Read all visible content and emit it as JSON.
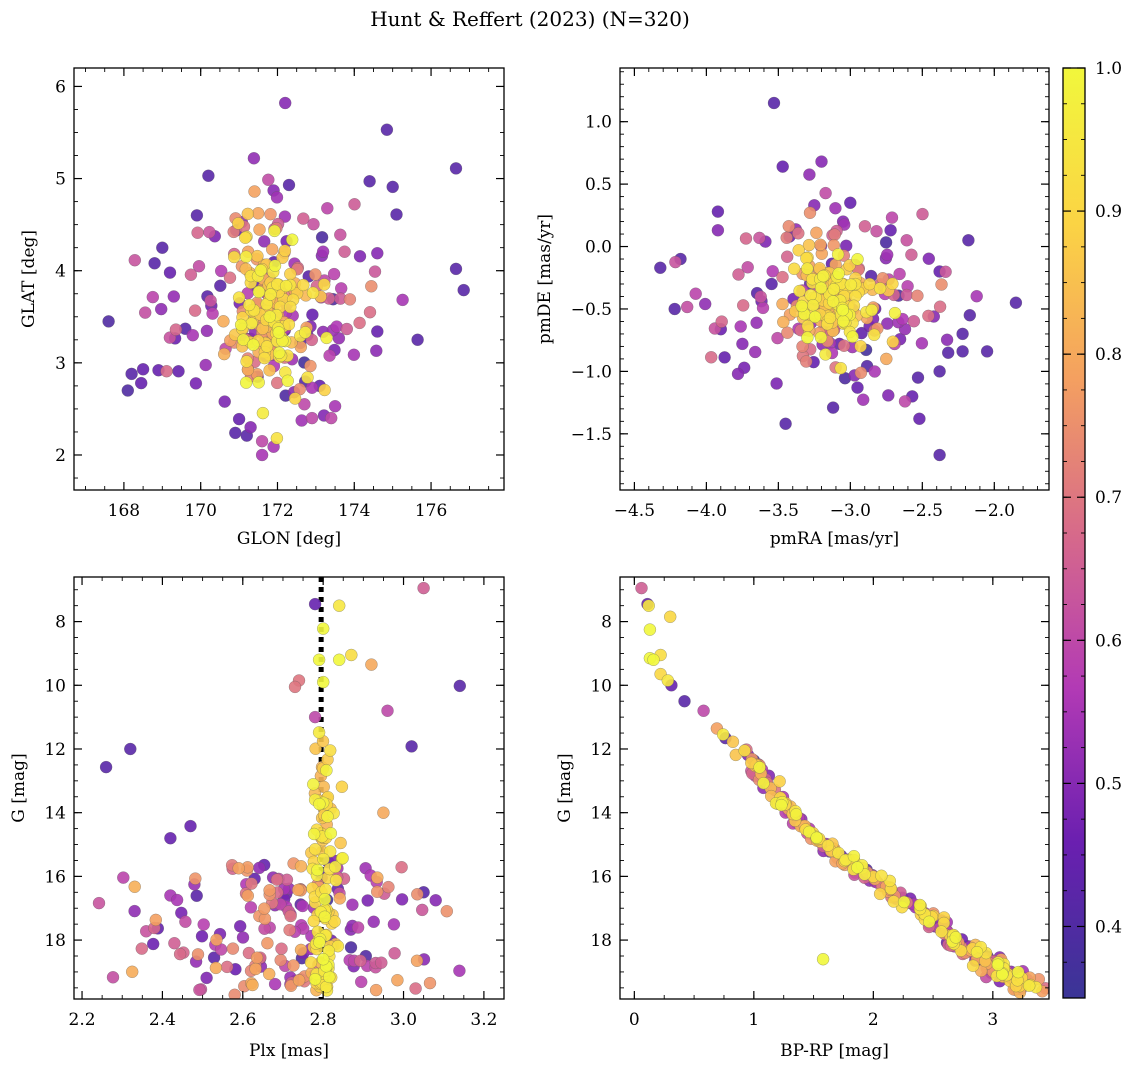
{
  "figure": {
    "title": "Hunt & Reffert (2023) (N=320)"
  },
  "chart_data": [
    {
      "type": "scatter",
      "id": "sky",
      "xlabel": "GLON [deg]",
      "ylabel": "GLAT [deg]",
      "xlim": [
        166.7,
        177.9
      ],
      "ylim": [
        1.62,
        6.2
      ],
      "xticks": [
        168,
        170,
        172,
        174,
        176
      ],
      "xminor": 0.5,
      "yticks": [
        2,
        3,
        4,
        5,
        6
      ],
      "yminor": 0.25,
      "x_tick_labels": [
        "168",
        "170",
        "172",
        "174",
        "176"
      ],
      "y_tick_labels": [
        "2",
        "3",
        "4",
        "5",
        "6"
      ],
      "cluster": {
        "cx": 171.8,
        "cy": 3.6,
        "sx": 0.55,
        "sy": 0.42
      },
      "field": {
        "cx": 172.0,
        "cy": 3.6,
        "sx": 1.4,
        "sy": 0.6
      },
      "fixed_points": [
        {
          "x": 167.6,
          "y": 3.45,
          "c": 0.4
        },
        {
          "x": 168.1,
          "y": 2.7,
          "c": 0.4
        },
        {
          "x": 168.2,
          "y": 2.88,
          "c": 0.42
        },
        {
          "x": 168.45,
          "y": 2.78,
          "c": 0.45
        },
        {
          "x": 168.5,
          "y": 2.93,
          "c": 0.45
        },
        {
          "x": 168.8,
          "y": 4.08,
          "c": 0.42
        },
        {
          "x": 168.9,
          "y": 2.92,
          "c": 0.45
        },
        {
          "x": 169.0,
          "y": 4.25,
          "c": 0.42
        },
        {
          "x": 169.2,
          "y": 3.98,
          "c": 0.45
        },
        {
          "x": 169.3,
          "y": 3.72,
          "c": 0.52
        },
        {
          "x": 169.6,
          "y": 3.37,
          "c": 0.42
        },
        {
          "x": 170.2,
          "y": 5.03,
          "c": 0.42
        },
        {
          "x": 169.9,
          "y": 4.6,
          "c": 0.42
        },
        {
          "x": 172.2,
          "y": 5.82,
          "c": 0.5
        },
        {
          "x": 174.85,
          "y": 5.53,
          "c": 0.42
        },
        {
          "x": 176.65,
          "y": 5.11,
          "c": 0.42
        },
        {
          "x": 174.4,
          "y": 4.97,
          "c": 0.42
        },
        {
          "x": 175.0,
          "y": 4.91,
          "c": 0.42
        },
        {
          "x": 172.3,
          "y": 4.93,
          "c": 0.42
        },
        {
          "x": 171.9,
          "y": 4.87,
          "c": 0.5
        },
        {
          "x": 175.1,
          "y": 4.61,
          "c": 0.42
        },
        {
          "x": 176.65,
          "y": 4.02,
          "c": 0.42
        },
        {
          "x": 176.85,
          "y": 3.79,
          "c": 0.42
        },
        {
          "x": 175.65,
          "y": 3.25,
          "c": 0.42
        },
        {
          "x": 174.6,
          "y": 3.34,
          "c": 0.45
        },
        {
          "x": 174.6,
          "y": 4.19,
          "c": 0.5
        },
        {
          "x": 170.9,
          "y": 2.24,
          "c": 0.42
        },
        {
          "x": 171.0,
          "y": 2.39,
          "c": 0.45
        },
        {
          "x": 171.2,
          "y": 2.21,
          "c": 0.42
        },
        {
          "x": 171.3,
          "y": 2.3,
          "c": 0.5
        },
        {
          "x": 171.6,
          "y": 2.0,
          "c": 0.55
        },
        {
          "x": 171.6,
          "y": 2.15,
          "c": 0.6
        },
        {
          "x": 171.9,
          "y": 2.09,
          "c": 0.55
        },
        {
          "x": 172.7,
          "y": 2.55,
          "c": 0.6
        },
        {
          "x": 172.9,
          "y": 2.4,
          "c": 0.6
        },
        {
          "x": 173.1,
          "y": 2.75,
          "c": 0.45
        },
        {
          "x": 173.5,
          "y": 2.53,
          "c": 0.55
        },
        {
          "x": 173.4,
          "y": 2.4,
          "c": 0.6
        }
      ]
    },
    {
      "type": "scatter",
      "id": "pm",
      "xlabel": "pmRA [mas/yr]",
      "ylabel": "pmDE [mas/yr]",
      "xlim": [
        -4.6,
        -1.62
      ],
      "ylim": [
        -1.95,
        1.43
      ],
      "xticks": [
        -4.5,
        -4.0,
        -3.5,
        -3.0,
        -2.5,
        -2.0
      ],
      "xminor": 0.1,
      "yticks": [
        -1.5,
        -1.0,
        -0.5,
        0.0,
        0.5,
        1.0
      ],
      "yminor": 0.1,
      "x_tick_labels": [
        "−4.5",
        "−4.0",
        "−3.5",
        "−3.0",
        "−2.5",
        "−2.0"
      ],
      "y_tick_labels": [
        "−1.5",
        "−1.0",
        "−0.5",
        "0.0",
        "0.5",
        "1.0"
      ],
      "cluster": {
        "cx": -3.12,
        "cy": -0.4,
        "sx": 0.16,
        "sy": 0.17
      },
      "field": {
        "cx": -3.1,
        "cy": -0.45,
        "sx": 0.42,
        "sy": 0.38
      },
      "fixed_points": [
        {
          "x": -3.53,
          "y": 1.15,
          "c": 0.42
        },
        {
          "x": -3.47,
          "y": 0.64,
          "c": 0.45
        },
        {
          "x": -3.2,
          "y": 0.68,
          "c": 0.5
        },
        {
          "x": -4.32,
          "y": -0.17,
          "c": 0.42
        },
        {
          "x": -4.22,
          "y": -0.5,
          "c": 0.42
        },
        {
          "x": -4.18,
          "y": -0.1,
          "c": 0.42
        },
        {
          "x": -3.92,
          "y": 0.28,
          "c": 0.45
        },
        {
          "x": -3.92,
          "y": 0.13,
          "c": 0.5
        },
        {
          "x": -1.85,
          "y": -0.45,
          "c": 0.42
        },
        {
          "x": -2.05,
          "y": -0.84,
          "c": 0.42
        },
        {
          "x": -2.18,
          "y": 0.05,
          "c": 0.42
        },
        {
          "x": -2.17,
          "y": -0.55,
          "c": 0.42
        },
        {
          "x": -2.22,
          "y": -0.7,
          "c": 0.42
        },
        {
          "x": -2.22,
          "y": -0.84,
          "c": 0.42
        },
        {
          "x": -2.32,
          "y": -0.85,
          "c": 0.42
        },
        {
          "x": -2.38,
          "y": -1.0,
          "c": 0.42
        },
        {
          "x": -2.38,
          "y": -1.67,
          "c": 0.42
        },
        {
          "x": -2.53,
          "y": -1.05,
          "c": 0.42
        },
        {
          "x": -2.52,
          "y": -1.38,
          "c": 0.45
        },
        {
          "x": -2.57,
          "y": -1.2,
          "c": 0.45
        },
        {
          "x": -2.62,
          "y": -1.24,
          "c": 0.6
        },
        {
          "x": -2.75,
          "y": -0.9,
          "c": 0.8
        },
        {
          "x": -2.95,
          "y": -1.13,
          "c": 0.45
        },
        {
          "x": -3.12,
          "y": -1.29,
          "c": 0.42
        },
        {
          "x": -3.45,
          "y": -1.42,
          "c": 0.42
        },
        {
          "x": -3.78,
          "y": -1.02,
          "c": 0.5
        },
        {
          "x": -3.75,
          "y": -0.78,
          "c": 0.5
        },
        {
          "x": -3.0,
          "y": 0.35,
          "c": 0.45
        },
        {
          "x": -3.05,
          "y": 0.2,
          "c": 0.5
        },
        {
          "x": -2.72,
          "y": 0.13,
          "c": 0.45
        },
        {
          "x": -3.28,
          "y": 0.27,
          "c": 0.75
        },
        {
          "x": -3.25,
          "y": 0.33,
          "c": 0.5
        },
        {
          "x": -2.42,
          "y": -0.56,
          "c": 0.5
        },
        {
          "x": -2.38,
          "y": -0.2,
          "c": 0.45
        }
      ]
    },
    {
      "type": "scatter",
      "id": "plx",
      "xlabel": "Plx [mas]",
      "ylabel": "G [mag]",
      "xlim": [
        2.18,
        3.25
      ],
      "ylim": [
        19.85,
        6.6
      ],
      "xticks": [
        2.2,
        2.4,
        2.6,
        2.8,
        3.0,
        3.2
      ],
      "xminor": 0.05,
      "yticks": [
        8,
        10,
        12,
        14,
        16,
        18
      ],
      "yminor": 0.5,
      "x_tick_labels": [
        "2.2",
        "2.4",
        "2.6",
        "2.8",
        "3.0",
        "3.2"
      ],
      "y_tick_labels": [
        "8",
        "10",
        "12",
        "14",
        "16",
        "18"
      ],
      "reference_line": {
        "orientation": "vertical",
        "x": 2.795,
        "style": "dotted"
      },
      "cluster": {
        "cx": 2.8,
        "sx": 0.018
      },
      "field": {
        "cx": 2.72,
        "sx": 0.2
      },
      "fixed_points": [
        {
          "x": 3.05,
          "y": 6.95,
          "c": 0.65
        },
        {
          "x": 2.78,
          "y": 7.45,
          "c": 0.45
        },
        {
          "x": 2.84,
          "y": 7.5,
          "c": 0.95
        },
        {
          "x": 2.8,
          "y": 8.22,
          "c": 1.0
        },
        {
          "x": 2.79,
          "y": 9.2,
          "c": 1.0
        },
        {
          "x": 2.84,
          "y": 9.2,
          "c": 1.0
        },
        {
          "x": 2.87,
          "y": 9.05,
          "c": 0.92
        },
        {
          "x": 2.92,
          "y": 9.35,
          "c": 0.8
        },
        {
          "x": 2.8,
          "y": 9.9,
          "c": 1.0
        },
        {
          "x": 3.14,
          "y": 10.02,
          "c": 0.42
        },
        {
          "x": 2.74,
          "y": 9.85,
          "c": 0.7
        },
        {
          "x": 2.73,
          "y": 10.05,
          "c": 0.7
        },
        {
          "x": 2.96,
          "y": 10.8,
          "c": 0.6
        },
        {
          "x": 2.78,
          "y": 11.0,
          "c": 0.6
        },
        {
          "x": 2.26,
          "y": 12.57,
          "c": 0.42
        },
        {
          "x": 2.32,
          "y": 12.0,
          "c": 0.42
        },
        {
          "x": 2.42,
          "y": 14.8,
          "c": 0.45
        },
        {
          "x": 2.47,
          "y": 14.42,
          "c": 0.45
        },
        {
          "x": 2.42,
          "y": 16.6,
          "c": 0.55
        },
        {
          "x": 3.02,
          "y": 11.92,
          "c": 0.42
        },
        {
          "x": 3.05,
          "y": 16.5,
          "c": 0.42
        },
        {
          "x": 3.08,
          "y": 16.75,
          "c": 0.5
        },
        {
          "x": 2.8,
          "y": 18.6,
          "c": 1.0
        },
        {
          "x": 2.95,
          "y": 14.0,
          "c": 0.8
        }
      ]
    },
    {
      "type": "scatter",
      "id": "cmd",
      "xlabel": "BP-RP [mag]",
      "ylabel": "G [mag]",
      "xlim": [
        -0.12,
        3.47
      ],
      "ylim": [
        19.85,
        6.6
      ],
      "xticks": [
        0,
        1,
        2,
        3
      ],
      "xminor": 0.25,
      "yticks": [
        8,
        10,
        12,
        14,
        16,
        18
      ],
      "yminor": 0.5,
      "x_tick_labels": [
        "0",
        "1",
        "2",
        "3"
      ],
      "y_tick_labels": [
        "8",
        "10",
        "12",
        "14",
        "16",
        "18"
      ],
      "sequence": [
        [
          0.05,
          6.9
        ],
        [
          0.3,
          9.8
        ],
        [
          0.6,
          10.8
        ],
        [
          1.0,
          12.5
        ],
        [
          1.3,
          14.0
        ],
        [
          1.6,
          15.0
        ],
        [
          2.0,
          16.1
        ],
        [
          2.4,
          17.1
        ],
        [
          2.8,
          18.3
        ],
        [
          3.2,
          19.3
        ]
      ],
      "fixed_points": [
        {
          "x": 0.06,
          "y": 6.95,
          "c": 0.65
        },
        {
          "x": 0.11,
          "y": 7.45,
          "c": 0.45
        },
        {
          "x": 0.12,
          "y": 7.5,
          "c": 0.95
        },
        {
          "x": 0.3,
          "y": 7.85,
          "c": 0.9
        },
        {
          "x": 0.13,
          "y": 8.25,
          "c": 1.0
        },
        {
          "x": 0.13,
          "y": 9.15,
          "c": 1.0
        },
        {
          "x": 0.16,
          "y": 9.2,
          "c": 1.0
        },
        {
          "x": 0.22,
          "y": 9.05,
          "c": 0.92
        },
        {
          "x": 0.22,
          "y": 9.65,
          "c": 0.9
        },
        {
          "x": 0.28,
          "y": 9.85,
          "c": 0.95
        },
        {
          "x": 0.31,
          "y": 10.0,
          "c": 0.45
        },
        {
          "x": 0.42,
          "y": 10.5,
          "c": 0.42
        },
        {
          "x": 0.58,
          "y": 10.8,
          "c": 0.6
        },
        {
          "x": 1.58,
          "y": 18.6,
          "c": 1.0
        }
      ]
    }
  ],
  "colorbar": {
    "range": [
      0.35,
      1.0
    ],
    "ticks": [
      0.4,
      0.5,
      0.6,
      0.7,
      0.8,
      0.9,
      1.0
    ],
    "tick_labels": [
      "0.4",
      "0.5",
      "0.6",
      "0.7",
      "0.8",
      "0.9",
      "1.0"
    ],
    "colormap": "plasma",
    "stops": [
      "#3a3596",
      "#6a1fb0",
      "#b23ab5",
      "#d76a8a",
      "#f4a060",
      "#fbd444",
      "#f1f73c"
    ]
  }
}
